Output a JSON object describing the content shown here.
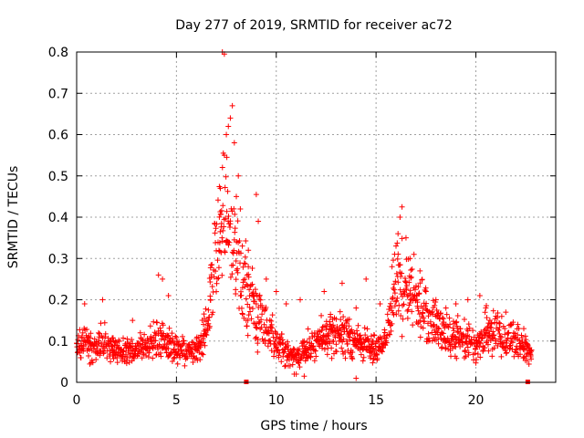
{
  "chart_data": {
    "type": "scatter",
    "title": "Day 277 of 2019, SRMTID for receiver ac72",
    "xlabel": "GPS time / hours",
    "ylabel": "SRMTID / TECUs",
    "xlim": [
      0,
      24
    ],
    "ylim": [
      0,
      0.8
    ],
    "x_ticks": [
      0,
      5,
      10,
      15,
      20
    ],
    "x_tick_labels": [
      "0",
      "5",
      "10",
      "15",
      "20"
    ],
    "y_ticks": [
      0,
      0.1,
      0.2,
      0.3,
      0.4,
      0.5,
      0.6,
      0.7,
      0.8
    ],
    "y_tick_labels": [
      "0",
      "0.1",
      "0.2",
      "0.3",
      "0.4",
      "0.5",
      "0.6",
      "0.7",
      "0.8"
    ],
    "grid": true,
    "marker": "plus",
    "color": "#ff0000",
    "series": [
      {
        "name": "SRMTID",
        "profile": [
          [
            0.0,
            0.085
          ],
          [
            0.5,
            0.095
          ],
          [
            1.0,
            0.09
          ],
          [
            1.5,
            0.095
          ],
          [
            2.0,
            0.08
          ],
          [
            2.5,
            0.075
          ],
          [
            3.0,
            0.08
          ],
          [
            3.5,
            0.085
          ],
          [
            4.0,
            0.11
          ],
          [
            4.5,
            0.1
          ],
          [
            5.0,
            0.08
          ],
          [
            5.5,
            0.07
          ],
          [
            6.0,
            0.08
          ],
          [
            6.5,
            0.13
          ],
          [
            7.0,
            0.32
          ],
          [
            7.5,
            0.4
          ],
          [
            8.0,
            0.3
          ],
          [
            8.5,
            0.22
          ],
          [
            9.0,
            0.17
          ],
          [
            9.5,
            0.14
          ],
          [
            10.0,
            0.1
          ],
          [
            10.5,
            0.07
          ],
          [
            11.0,
            0.06
          ],
          [
            11.5,
            0.08
          ],
          [
            12.0,
            0.1
          ],
          [
            12.5,
            0.11
          ],
          [
            13.0,
            0.12
          ],
          [
            13.5,
            0.11
          ],
          [
            14.0,
            0.1
          ],
          [
            14.5,
            0.09
          ],
          [
            15.0,
            0.08
          ],
          [
            15.5,
            0.11
          ],
          [
            16.0,
            0.23
          ],
          [
            16.5,
            0.24
          ],
          [
            17.0,
            0.2
          ],
          [
            17.5,
            0.16
          ],
          [
            18.0,
            0.14
          ],
          [
            18.5,
            0.12
          ],
          [
            19.0,
            0.11
          ],
          [
            19.5,
            0.1
          ],
          [
            20.0,
            0.09
          ],
          [
            20.5,
            0.12
          ],
          [
            21.0,
            0.13
          ],
          [
            21.5,
            0.11
          ],
          [
            22.0,
            0.1
          ],
          [
            22.5,
            0.08
          ],
          [
            22.8,
            0.07
          ]
        ],
        "highlights": [
          [
            0.4,
            0.19
          ],
          [
            1.3,
            0.2
          ],
          [
            2.8,
            0.15
          ],
          [
            4.1,
            0.26
          ],
          [
            4.3,
            0.25
          ],
          [
            4.6,
            0.21
          ],
          [
            6.7,
            0.2
          ],
          [
            7.2,
            0.47
          ],
          [
            7.4,
            0.55
          ],
          [
            7.6,
            0.62
          ],
          [
            7.8,
            0.67
          ],
          [
            7.7,
            0.64
          ],
          [
            7.5,
            0.6
          ],
          [
            7.9,
            0.58
          ],
          [
            8.1,
            0.5
          ],
          [
            8.0,
            0.45
          ],
          [
            8.2,
            0.42
          ],
          [
            8.3,
            0.33
          ],
          [
            8.6,
            0.28
          ],
          [
            9.0,
            0.455
          ],
          [
            9.1,
            0.39
          ],
          [
            9.5,
            0.25
          ],
          [
            10.0,
            0.22
          ],
          [
            10.5,
            0.19
          ],
          [
            11.2,
            0.2
          ],
          [
            12.4,
            0.22
          ],
          [
            13.3,
            0.24
          ],
          [
            14.0,
            0.18
          ],
          [
            14.5,
            0.25
          ],
          [
            15.2,
            0.19
          ],
          [
            15.8,
            0.28
          ],
          [
            16.0,
            0.33
          ],
          [
            16.1,
            0.36
          ],
          [
            16.2,
            0.4
          ],
          [
            16.3,
            0.425
          ],
          [
            16.5,
            0.35
          ],
          [
            16.7,
            0.3
          ],
          [
            16.9,
            0.31
          ],
          [
            17.2,
            0.27
          ],
          [
            17.5,
            0.22
          ],
          [
            18.0,
            0.2
          ],
          [
            18.5,
            0.18
          ],
          [
            19.0,
            0.19
          ],
          [
            19.6,
            0.2
          ],
          [
            20.2,
            0.21
          ],
          [
            20.5,
            0.18
          ],
          [
            21.0,
            0.16
          ],
          [
            21.5,
            0.17
          ],
          [
            22.1,
            0.14
          ],
          [
            22.4,
            0.13
          ],
          [
            11.0,
            0.02
          ],
          [
            11.4,
            0.015
          ],
          [
            14.0,
            0.01
          ],
          [
            10.9,
            0.02
          ]
        ],
        "outliers": [
          [
            7.3,
            0.8
          ],
          [
            7.4,
            0.795
          ]
        ]
      }
    ],
    "baseline_markers": [
      8.5,
      22.6
    ]
  }
}
